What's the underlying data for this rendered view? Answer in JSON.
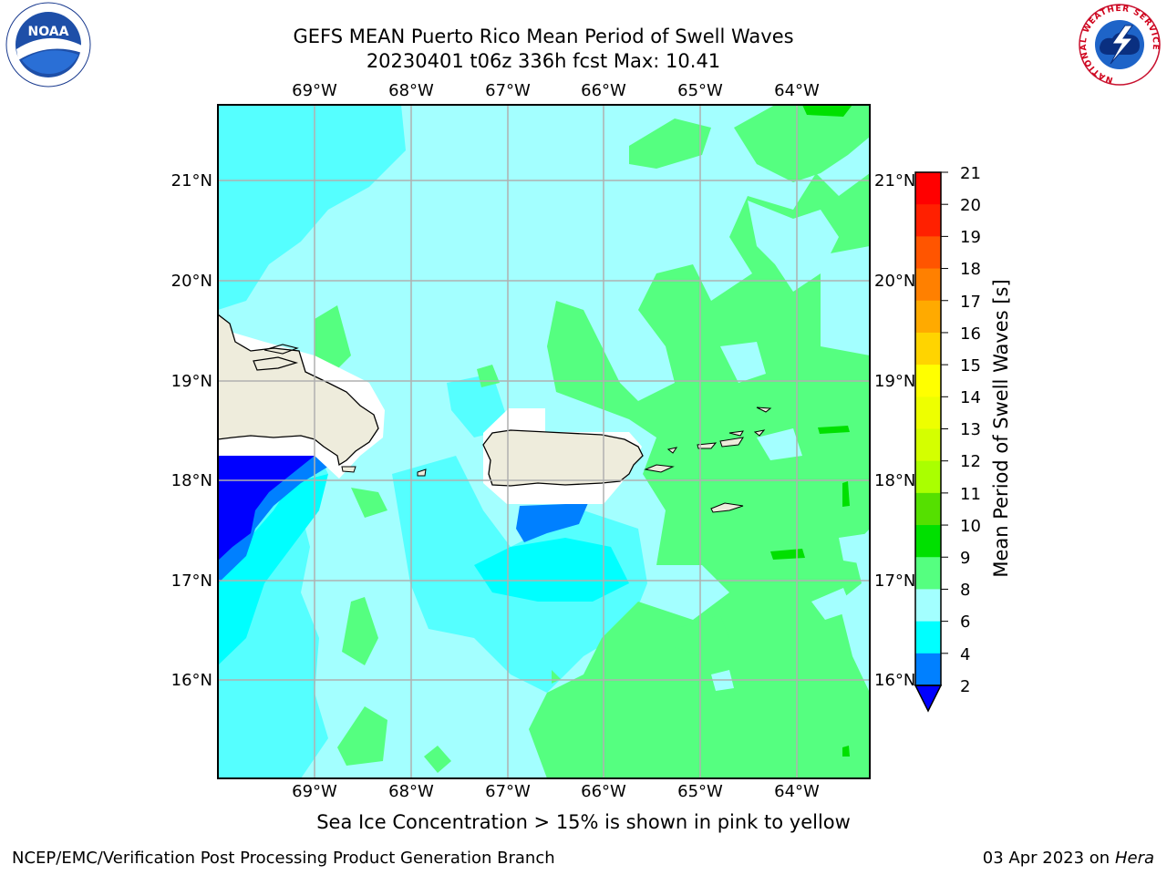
{
  "title_line1": "GEFS MEAN Puerto Rico Mean Period of Swell Waves",
  "title_line2": "20230401 t06z 336h fcst   Max: 10.41",
  "logos": {
    "left_icon": "noaa-logo",
    "right_icon": "nws-logo",
    "left_text": "NOAA",
    "left_ring_text": "NATIONAL OCEANIC AND ATMOSPHERIC ADMINISTRATION · U.S. DEPARTMENT OF COMMERCE",
    "right_ring_text": "NATIONAL WEATHER SERVICE"
  },
  "map": {
    "lon_labels": [
      "69°W",
      "68°W",
      "67°W",
      "66°W",
      "65°W",
      "64°W"
    ],
    "lat_labels": [
      "21°N",
      "20°N",
      "19°N",
      "18°N",
      "17°N",
      "16°N"
    ],
    "land_color": "#eeecdc",
    "colors": {
      "lt2": "#0000ff",
      "2_4": "#0080ff",
      "4_6": "#00ffff",
      "6_8": "#55ffff",
      "8_9": "#a3ffff",
      "9_10": "#55ff80",
      "10_11": "#00e000"
    }
  },
  "colorbar": {
    "label": "Mean Period of Swell Waves [s]",
    "ticks": [
      "21",
      "20",
      "19",
      "18",
      "17",
      "16",
      "15",
      "14",
      "13",
      "12",
      "11",
      "10",
      "9",
      "8",
      "6",
      "4",
      "2"
    ],
    "colors_top_to_bottom": [
      "#ff0000",
      "#ff2000",
      "#ff5500",
      "#ff8000",
      "#ffaa00",
      "#ffd400",
      "#ffff00",
      "#eeff00",
      "#d4ff00",
      "#aaff00",
      "#55e000",
      "#00e000",
      "#00ff00",
      "#55ff80",
      "#a3ffff",
      "#55ffff",
      "#00ffff",
      "#0080ff",
      "#0000ff"
    ]
  },
  "note": "Sea Ice Concentration > 15% is shown in pink to yellow",
  "footer_left": "NCEP/EMC/Verification Post Processing Product Generation Branch",
  "footer_date": "03 Apr 2023 on ",
  "footer_machine": "Hera"
}
